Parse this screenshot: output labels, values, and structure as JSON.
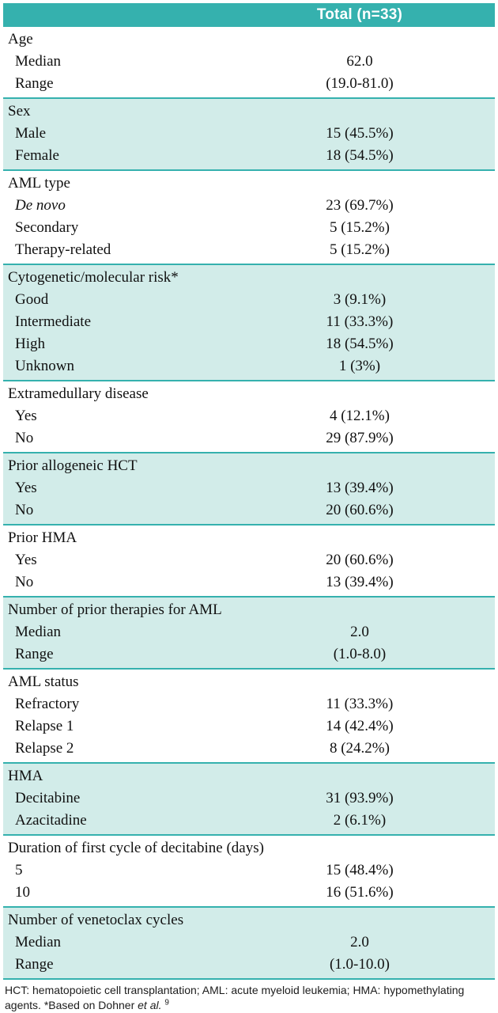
{
  "header": {
    "total_label": "Total (n=33)"
  },
  "sections": [
    {
      "title": "Age",
      "shade": false,
      "rows": [
        {
          "label": "Median",
          "value": "62.0"
        },
        {
          "label": "Range",
          "value": "(19.0-81.0)"
        }
      ]
    },
    {
      "title": "Sex",
      "shade": true,
      "rows": [
        {
          "label": "Male",
          "value": "15 (45.5%)"
        },
        {
          "label": "Female",
          "value": "18 (54.5%)"
        }
      ]
    },
    {
      "title": "AML type",
      "shade": false,
      "rows": [
        {
          "label": "De novo",
          "italic": true,
          "value": "23 (69.7%)"
        },
        {
          "label": "Secondary",
          "value": "5 (15.2%)"
        },
        {
          "label": "Therapy-related",
          "value": "5 (15.2%)"
        }
      ]
    },
    {
      "title": "Cytogenetic/molecular risk*",
      "shade": true,
      "rows": [
        {
          "label": "Good",
          "value": "3 (9.1%)"
        },
        {
          "label": "Intermediate",
          "value": "11 (33.3%)"
        },
        {
          "label": "High",
          "value": "18 (54.5%)"
        },
        {
          "label": "Unknown",
          "value": "1 (3%)"
        }
      ]
    },
    {
      "title": "Extramedullary disease",
      "shade": false,
      "rows": [
        {
          "label": "Yes",
          "value": "4 (12.1%)"
        },
        {
          "label": "No",
          "value": "29 (87.9%)"
        }
      ]
    },
    {
      "title": "Prior allogeneic HCT",
      "shade": true,
      "rows": [
        {
          "label": "Yes",
          "value": "13 (39.4%)"
        },
        {
          "label": "No",
          "value": "20 (60.6%)"
        }
      ]
    },
    {
      "title": "Prior HMA",
      "shade": false,
      "rows": [
        {
          "label": "Yes",
          "value": "20 (60.6%)"
        },
        {
          "label": "No",
          "value": "13 (39.4%)"
        }
      ]
    },
    {
      "title": "Number of prior therapies for AML",
      "shade": true,
      "rows": [
        {
          "label": "Median",
          "value": "2.0"
        },
        {
          "label": "Range",
          "value": "(1.0-8.0)"
        }
      ]
    },
    {
      "title": "AML status",
      "shade": false,
      "rows": [
        {
          "label": "Refractory",
          "value": "11 (33.3%)"
        },
        {
          "label": "Relapse 1",
          "value": "14 (42.4%)"
        },
        {
          "label": "Relapse 2",
          "value": "8 (24.2%)"
        }
      ]
    },
    {
      "title": "HMA",
      "shade": true,
      "rows": [
        {
          "label": "Decitabine",
          "value": "31 (93.9%)"
        },
        {
          "label": "Azacitadine",
          "value": "2 (6.1%)"
        }
      ]
    },
    {
      "title": "Duration of first cycle of decitabine (days)",
      "shade": false,
      "rows": [
        {
          "label": "5",
          "value": "15 (48.4%)"
        },
        {
          "label": "10",
          "value": "16 (51.6%)"
        }
      ]
    },
    {
      "title": "Number of venetoclax cycles",
      "shade": true,
      "rows": [
        {
          "label": "Median",
          "value": "2.0"
        },
        {
          "label": "Range",
          "value": "(1.0-10.0)"
        }
      ]
    }
  ],
  "footnote": {
    "text": "HCT: hematopoietic cell transplantation; AML: acute myeloid leukemia; HMA: hypomethylating agents. *Based on Dohner ",
    "italic": "et al.",
    "ref": "9"
  },
  "colors": {
    "header_bg": "#35b1ae",
    "shade_bg": "#d2ece9",
    "border": "#35b1ae",
    "header_text": "#ffffff"
  }
}
